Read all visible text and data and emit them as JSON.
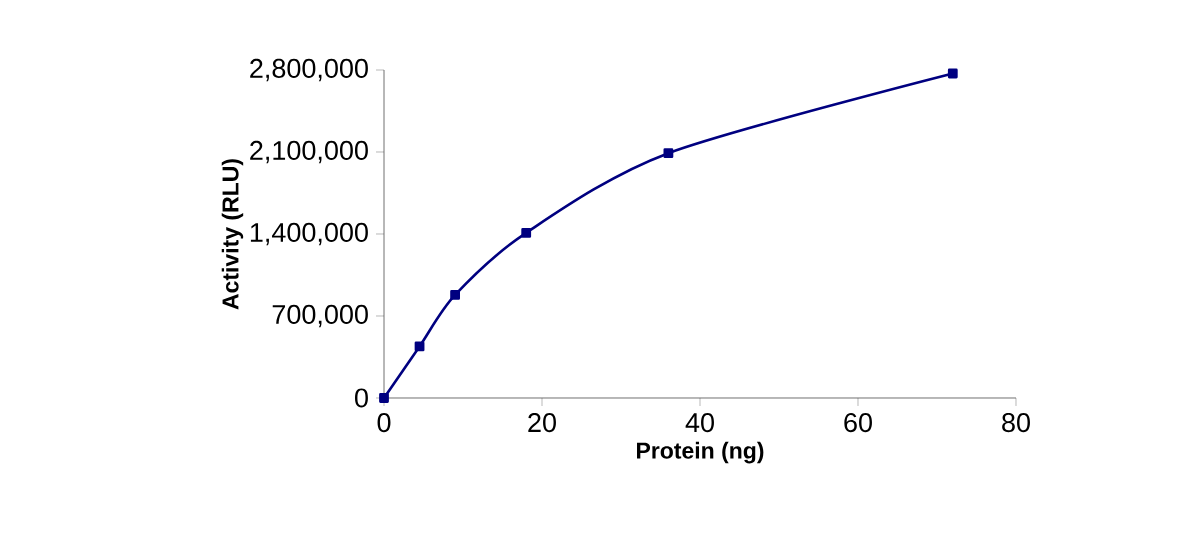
{
  "chart_data": {
    "type": "line",
    "xlabel": "Protein (ng)",
    "ylabel": "Activity (RLU)",
    "x": [
      0,
      4.5,
      9,
      18,
      36,
      72
    ],
    "series": [
      {
        "color": "#000080",
        "values": [
          0,
          440000,
          880000,
          1410000,
          2090000,
          2770000
        ]
      }
    ],
    "xlim": [
      0,
      80
    ],
    "xticks": [
      0,
      20,
      40,
      60,
      80
    ],
    "ylim": [
      0,
      2800000
    ],
    "yticks": [
      {
        "value": 0,
        "label": "0"
      },
      {
        "value": 700000,
        "label": "700,000"
      },
      {
        "value": 1400000,
        "label": "1,400,000"
      },
      {
        "value": 2100000,
        "label": "2,100,000"
      },
      {
        "value": 2800000,
        "label": "2,800,000"
      }
    ],
    "grid": false,
    "legend": false,
    "marker": "square",
    "line_style": "solid"
  }
}
